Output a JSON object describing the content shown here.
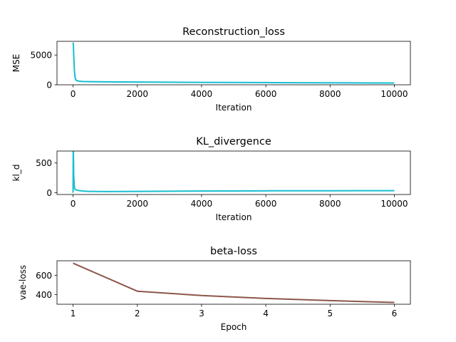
{
  "chart_data": [
    {
      "type": "line",
      "title": "Reconstruction_loss",
      "xlabel": "Iteration",
      "ylabel": "MSE",
      "xlim": [
        -500,
        10500
      ],
      "ylim": [
        0,
        7300
      ],
      "xticks": [
        0,
        2000,
        4000,
        6000,
        8000,
        10000
      ],
      "yticks": [
        0,
        5000
      ],
      "grid": false,
      "series": [
        {
          "color": "#17becf",
          "x": [
            0,
            10,
            20,
            40,
            60,
            80,
            100,
            150,
            200,
            300,
            500,
            1000,
            2000,
            3000,
            4000,
            5000,
            6000,
            7000,
            8000,
            9000,
            10000
          ],
          "y": [
            7100,
            6700,
            5000,
            2600,
            1300,
            900,
            750,
            640,
            600,
            560,
            520,
            490,
            460,
            430,
            410,
            390,
            370,
            350,
            330,
            320,
            300
          ]
        }
      ]
    },
    {
      "type": "line",
      "title": "KL_divergence",
      "xlabel": "Iteration",
      "ylabel": "kl_d",
      "xlim": [
        -500,
        10500
      ],
      "ylim": [
        -30,
        700
      ],
      "xticks": [
        0,
        2000,
        4000,
        6000,
        8000,
        10000
      ],
      "yticks": [
        0,
        500
      ],
      "grid": false,
      "series": [
        {
          "color": "#17becf",
          "x": [
            0,
            5,
            10,
            20,
            40,
            60,
            100,
            200,
            300,
            500,
            1000,
            2000,
            3000,
            4000,
            5000,
            6000,
            7000,
            8000,
            9000,
            10000
          ],
          "y": [
            0,
            700,
            700,
            300,
            90,
            60,
            45,
            35,
            28,
            22,
            20,
            22,
            25,
            28,
            30,
            32,
            33,
            33,
            34,
            34
          ]
        }
      ]
    },
    {
      "type": "line",
      "title": "beta-loss",
      "xlabel": "Epoch",
      "ylabel": "vae-loss",
      "xlim": [
        0.75,
        6.25
      ],
      "ylim": [
        300,
        750
      ],
      "xticks": [
        1,
        2,
        3,
        4,
        5,
        6
      ],
      "yticks": [
        400,
        600
      ],
      "grid": false,
      "series": [
        {
          "color": "#8c564b",
          "x": [
            1,
            2,
            3,
            4,
            5,
            6
          ],
          "y": [
            725,
            435,
            390,
            360,
            338,
            318
          ]
        }
      ]
    }
  ]
}
